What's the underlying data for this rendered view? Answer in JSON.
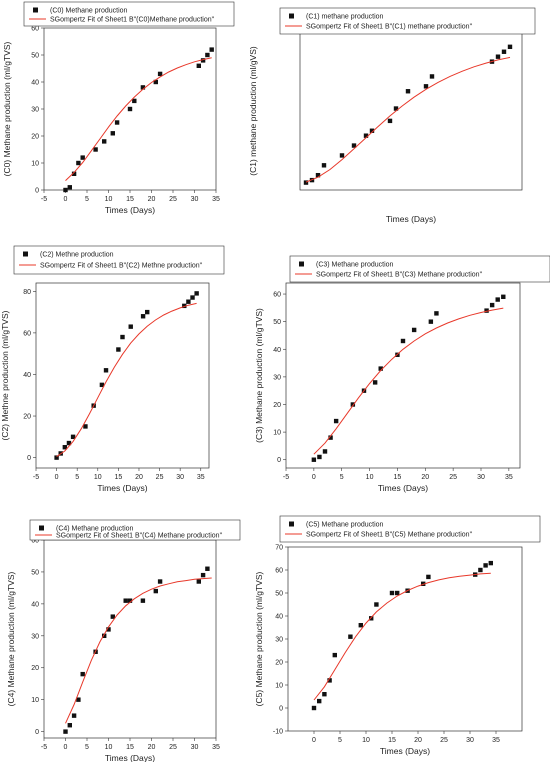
{
  "chart_data": [
    {
      "type": "scatter",
      "xlabel": "Times (Days)",
      "ylabel": "(C0) Methane production (ml/gTVS)",
      "xlim": [
        -5,
        35
      ],
      "ylim": [
        0,
        60
      ],
      "xticks": [
        -5,
        0,
        5,
        10,
        15,
        20,
        25,
        30,
        35
      ],
      "yticks": [
        0,
        10,
        20,
        30,
        40,
        50,
        60
      ],
      "legend": "top-left",
      "series": [
        {
          "name": "(C0) Methane production",
          "kind": "points",
          "x": [
            0,
            1,
            2,
            3,
            4,
            7,
            9,
            11,
            12,
            15,
            16,
            18,
            21,
            22,
            31,
            32,
            33,
            34
          ],
          "y": [
            0,
            1,
            6,
            10,
            12,
            15,
            18,
            21,
            25,
            30,
            33,
            38,
            40,
            43,
            46,
            48,
            50,
            52
          ]
        },
        {
          "name": "SGompertz Fit of Sheet1 B\"(C0)Methane production\"",
          "kind": "line",
          "color": "#e8382a",
          "x": [
            0,
            2,
            4,
            6,
            8,
            10,
            12,
            14,
            16,
            18,
            20,
            22,
            24,
            26,
            28,
            30,
            32,
            34
          ],
          "y": [
            3.5,
            6.5,
            10.2,
            14.5,
            18.9,
            23.3,
            27.4,
            31.1,
            34.4,
            37.3,
            39.8,
            41.9,
            43.7,
            45.2,
            46.4,
            47.5,
            48.3,
            49.0
          ]
        }
      ]
    },
    {
      "type": "scatter",
      "xlabel": "Times (Days)",
      "ylabel": "(C1) methane production (ml/gVS)",
      "xlim": [
        -1,
        36
      ],
      "ylim": [
        -2,
        62
      ],
      "legend": "top-left",
      "series": [
        {
          "name": "(C1) methane production",
          "kind": "points",
          "x": [
            0,
            1,
            2,
            3,
            6,
            8,
            10,
            11,
            14,
            15,
            17,
            20,
            21,
            31,
            32,
            33,
            34
          ],
          "y": [
            1,
            2,
            4,
            8,
            12,
            16,
            20,
            22,
            26,
            31,
            38,
            40,
            44,
            50,
            52,
            54,
            56
          ]
        },
        {
          "name": "SGompertz Fit of Sheet1 B\"(C1) methane production\"",
          "kind": "line",
          "color": "#e8382a",
          "x": [
            0,
            2,
            4,
            6,
            8,
            10,
            12,
            14,
            16,
            18,
            20,
            22,
            24,
            26,
            28,
            30,
            32,
            34
          ],
          "y": [
            1.2,
            3.2,
            6.3,
            10.3,
            14.7,
            19.2,
            23.7,
            28.0,
            32.0,
            35.6,
            38.8,
            41.6,
            44.0,
            46.1,
            47.9,
            49.4,
            50.7,
            51.7
          ]
        }
      ]
    },
    {
      "type": "scatter",
      "xlabel": "Times (Days)",
      "ylabel": "(C2) Methne production (ml/gTVS)",
      "xlim": [
        -5,
        37
      ],
      "ylim": [
        -5,
        84
      ],
      "xticks": [
        -5,
        0,
        5,
        10,
        15,
        20,
        25,
        30,
        35
      ],
      "yticks": [
        0,
        20,
        40,
        60,
        80
      ],
      "legend": "top-left",
      "series": [
        {
          "name": "(C2) Methne production",
          "kind": "points",
          "x": [
            0,
            1,
            2,
            3,
            4,
            7,
            9,
            11,
            12,
            15,
            16,
            18,
            21,
            22,
            31,
            32,
            33,
            34
          ],
          "y": [
            0,
            2,
            5,
            7,
            10,
            15,
            25,
            35,
            42,
            52,
            58,
            63,
            68,
            70,
            73,
            75,
            77,
            79
          ]
        },
        {
          "name": "SGompertz Fit of Sheet1 B\"(C2) Methne production\"",
          "kind": "line",
          "color": "#e8382a",
          "x": [
            0,
            2,
            4,
            6,
            8,
            10,
            12,
            14,
            16,
            18,
            20,
            22,
            24,
            26,
            28,
            30,
            32,
            34
          ],
          "y": [
            0.5,
            3.2,
            7.8,
            13.9,
            21.1,
            28.8,
            36.4,
            43.5,
            49.7,
            55.1,
            59.5,
            63.2,
            66.2,
            68.6,
            70.5,
            72.0,
            73.3,
            74.2
          ]
        }
      ]
    },
    {
      "type": "scatter",
      "xlabel": "Times (Days)",
      "ylabel": "(C3) Methane production (ml/gTVS)",
      "xlim": [
        -5,
        37
      ],
      "ylim": [
        -3,
        64
      ],
      "xticks": [
        -5,
        0,
        5,
        10,
        15,
        20,
        25,
        30,
        35
      ],
      "yticks": [
        0,
        10,
        20,
        30,
        40,
        50,
        60
      ],
      "legend": "top-left",
      "series": [
        {
          "name": "(C3) Methane production",
          "kind": "points",
          "x": [
            0,
            1,
            2,
            3,
            4,
            7,
            9,
            11,
            12,
            15,
            16,
            18,
            21,
            22,
            31,
            32,
            33,
            34
          ],
          "y": [
            0,
            1,
            3,
            8,
            14,
            20,
            25,
            28,
            33,
            38,
            43,
            47,
            50,
            53,
            54,
            56,
            58,
            59
          ]
        },
        {
          "name": "SGompertz Fit of Sheet1 B\"(C3) Methane production\"",
          "kind": "line",
          "color": "#e8382a",
          "x": [
            0,
            2,
            4,
            6,
            8,
            10,
            12,
            14,
            16,
            18,
            20,
            22,
            24,
            26,
            28,
            30,
            32,
            34
          ],
          "y": [
            2.0,
            6.0,
            11.2,
            16.8,
            22.4,
            27.6,
            32.3,
            36.4,
            40.0,
            43.0,
            45.6,
            47.7,
            49.5,
            51.0,
            52.3,
            53.3,
            54.2,
            54.9
          ]
        }
      ]
    },
    {
      "type": "scatter",
      "xlabel": "Times (Days)",
      "ylabel": "(C4) Methane production (ml/gTVS)",
      "xlim": [
        -5,
        35
      ],
      "ylim": [
        -2,
        60
      ],
      "xticks": [
        -5,
        0,
        5,
        10,
        15,
        20,
        25,
        30,
        35
      ],
      "yticks": [
        0,
        10,
        20,
        30,
        40,
        50,
        60
      ],
      "legend": "top-left",
      "series": [
        {
          "name": "(C4) Methane production",
          "kind": "points",
          "x": [
            0,
            1,
            2,
            3,
            4,
            7,
            9,
            10,
            11,
            14,
            15,
            18,
            21,
            22,
            31,
            32,
            33
          ],
          "y": [
            0,
            2,
            5,
            10,
            18,
            25,
            30,
            32,
            36,
            41,
            41,
            41,
            44,
            47,
            47,
            49,
            51
          ]
        },
        {
          "name": "SGompertz Fit of Sheet1 B\"(C4) Methane production\"",
          "kind": "line",
          "color": "#e8382a",
          "x": [
            0,
            2,
            4,
            6,
            8,
            10,
            12,
            14,
            16,
            18,
            20,
            22,
            24,
            26,
            28,
            30,
            32,
            34
          ],
          "y": [
            2.6,
            8.5,
            15.5,
            22.3,
            28.1,
            32.8,
            36.5,
            39.4,
            41.6,
            43.3,
            44.6,
            45.6,
            46.3,
            46.9,
            47.3,
            47.7,
            47.9,
            48.1
          ]
        }
      ]
    },
    {
      "type": "scatter",
      "xlabel": "Times (Days)",
      "ylabel": "(C5) Methane production (ml/gTVS)",
      "xlim": [
        -5,
        40
      ],
      "ylim": [
        -10,
        70
      ],
      "xticks": [
        0,
        5,
        10,
        15,
        20,
        25,
        30,
        35
      ],
      "yticks": [
        -10,
        0,
        10,
        20,
        30,
        40,
        50,
        60,
        70
      ],
      "legend": "top-left",
      "series": [
        {
          "name": "(C5) Methane production",
          "kind": "points",
          "x": [
            0,
            1,
            2,
            3,
            4,
            7,
            9,
            11,
            12,
            15,
            16,
            18,
            21,
            22,
            31,
            32,
            33,
            34
          ],
          "y": [
            0,
            3,
            6,
            12,
            23,
            31,
            36,
            39,
            45,
            50,
            50,
            51,
            54,
            57,
            58,
            60,
            62,
            63
          ]
        },
        {
          "name": "SGompertz Fit of Sheet1 B\"(C5) Methane production\"",
          "kind": "line",
          "color": "#e8382a",
          "x": [
            0,
            2,
            4,
            6,
            8,
            10,
            12,
            14,
            16,
            18,
            20,
            22,
            24,
            26,
            28,
            30,
            32,
            34
          ],
          "y": [
            3.5,
            9.2,
            16.6,
            24.1,
            31.0,
            36.9,
            41.8,
            45.6,
            48.7,
            51.1,
            53.0,
            54.5,
            55.7,
            56.6,
            57.3,
            57.8,
            58.3,
            58.6
          ]
        }
      ]
    }
  ]
}
